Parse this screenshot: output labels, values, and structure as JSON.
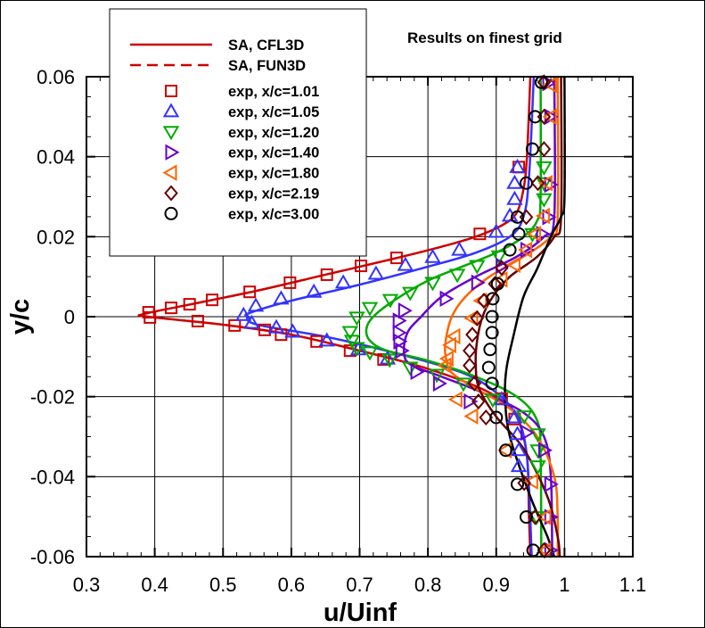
{
  "chart_data": {
    "type": "line",
    "title": "Results on finest grid",
    "xlabel": "u/Uinf",
    "ylabel": "y/c",
    "xlim": [
      0.3,
      1.1
    ],
    "ylim": [
      -0.06,
      0.06
    ],
    "xticks": [
      "0.3",
      "0.4",
      "0.5",
      "0.6",
      "0.7",
      "0.8",
      "0.9",
      "1",
      "1.1"
    ],
    "yticks": [
      "0.06",
      "0.04",
      "0.02",
      "0",
      "-0.02",
      "-0.04",
      "-0.06"
    ],
    "grid": true,
    "legend_placement": "top-left",
    "legend_lines": [
      {
        "name": "SA, CFL3D",
        "style": "solid",
        "color": "#cc0000"
      },
      {
        "name": "SA, FUN3D",
        "style": "dashed",
        "color": "#cc0000"
      }
    ],
    "stations": [
      {
        "name": "exp, x/c=1.01",
        "marker": "square",
        "color": "#cc0000",
        "line": [
          [
            0.95,
            0.06
          ],
          [
            0.945,
            0.04
          ],
          [
            0.94,
            0.032
          ],
          [
            0.93,
            0.026
          ],
          [
            0.91,
            0.023
          ],
          [
            0.87,
            0.02
          ],
          [
            0.82,
            0.0175
          ],
          [
            0.75,
            0.0145
          ],
          [
            0.65,
            0.0105
          ],
          [
            0.55,
            0.0065
          ],
          [
            0.45,
            0.003
          ],
          [
            0.385,
            0.0007
          ],
          [
            0.39,
            0
          ],
          [
            0.5,
            -0.002
          ],
          [
            0.6,
            -0.0045
          ],
          [
            0.7,
            -0.0085
          ],
          [
            0.78,
            -0.012
          ],
          [
            0.85,
            -0.016
          ],
          [
            0.9,
            -0.02
          ],
          [
            0.93,
            -0.025
          ],
          [
            0.945,
            -0.035
          ],
          [
            0.948,
            -0.05
          ],
          [
            0.95,
            -0.06
          ]
        ],
        "exp": [
          [
            0.933,
            0.0374
          ],
          [
            0.876,
            0.0207
          ],
          [
            0.754,
            0.0147
          ],
          [
            0.702,
            0.0127
          ],
          [
            0.652,
            0.0105
          ],
          [
            0.598,
            0.0085
          ],
          [
            0.539,
            0.0062
          ],
          [
            0.484,
            0.0042
          ],
          [
            0.451,
            0.0031
          ],
          [
            0.424,
            0.0022
          ],
          [
            0.391,
            0.0011
          ],
          [
            0.393,
            -0.0002
          ],
          [
            0.463,
            -0.0011
          ],
          [
            0.517,
            -0.0022
          ],
          [
            0.561,
            -0.0033
          ],
          [
            0.585,
            -0.0045
          ],
          [
            0.637,
            -0.0062
          ],
          [
            0.686,
            -0.0085
          ],
          [
            0.735,
            -0.0107
          ],
          [
            0.908,
            -0.0205
          ],
          [
            0.927,
            -0.0256
          ]
        ]
      },
      {
        "name": "exp, x/c=1.05",
        "marker": "triangle-up",
        "color": "#3333ff",
        "line": [
          [
            0.955,
            0.06
          ],
          [
            0.948,
            0.035
          ],
          [
            0.94,
            0.025
          ],
          [
            0.92,
            0.02
          ],
          [
            0.87,
            0.016
          ],
          [
            0.8,
            0.0125
          ],
          [
            0.7,
            0.008
          ],
          [
            0.6,
            0.004
          ],
          [
            0.54,
            0.001
          ],
          [
            0.535,
            0
          ],
          [
            0.55,
            -0.002
          ],
          [
            0.65,
            -0.005
          ],
          [
            0.75,
            -0.009
          ],
          [
            0.85,
            -0.014
          ],
          [
            0.9,
            -0.019
          ],
          [
            0.93,
            -0.025
          ],
          [
            0.945,
            -0.035
          ],
          [
            0.952,
            -0.06
          ]
        ],
        "exp": [
          [
            0.931,
            0.0374
          ],
          [
            0.927,
            0.0334
          ],
          [
            0.927,
            0.0294
          ],
          [
            0.92,
            0.0252
          ],
          [
            0.9,
            0.0212
          ],
          [
            0.846,
            0.0167
          ],
          [
            0.807,
            0.0149
          ],
          [
            0.767,
            0.0129
          ],
          [
            0.724,
            0.0107
          ],
          [
            0.676,
            0.0085
          ],
          [
            0.633,
            0.0062
          ],
          [
            0.585,
            0.0045
          ],
          [
            0.548,
            0.0027
          ],
          [
            0.53,
            0.0004
          ],
          [
            0.542,
            -0.0016
          ],
          [
            0.578,
            -0.0027
          ],
          [
            0.602,
            -0.0038
          ],
          [
            0.652,
            -0.006
          ],
          [
            0.698,
            -0.0082
          ],
          [
            0.741,
            -0.0105
          ],
          [
            0.908,
            -0.0207
          ],
          [
            0.927,
            -0.0252
          ],
          [
            0.931,
            -0.0294
          ],
          [
            0.933,
            -0.0334
          ],
          [
            0.933,
            -0.0374
          ]
        ]
      },
      {
        "name": "exp, x/c=1.20",
        "marker": "triangle-down",
        "color": "#00aa00",
        "line": [
          [
            0.965,
            0.06
          ],
          [
            0.965,
            0.03
          ],
          [
            0.96,
            0.024
          ],
          [
            0.94,
            0.02
          ],
          [
            0.9,
            0.016
          ],
          [
            0.85,
            0.0125
          ],
          [
            0.8,
            0.009
          ],
          [
            0.75,
            0.004
          ],
          [
            0.72,
            0
          ],
          [
            0.71,
            -0.003
          ],
          [
            0.715,
            -0.006
          ],
          [
            0.74,
            -0.0085
          ],
          [
            0.8,
            -0.011
          ],
          [
            0.87,
            -0.015
          ],
          [
            0.93,
            -0.02
          ],
          [
            0.96,
            -0.026
          ],
          [
            0.965,
            -0.035
          ],
          [
            0.966,
            -0.06
          ]
        ],
        "exp": [
          [
            0.97,
            0.0374
          ],
          [
            0.97,
            0.0334
          ],
          [
            0.97,
            0.0294
          ],
          [
            0.953,
            0.0207
          ],
          [
            0.904,
            0.0151
          ],
          [
            0.872,
            0.0127
          ],
          [
            0.843,
            0.0105
          ],
          [
            0.807,
            0.0085
          ],
          [
            0.774,
            0.006
          ],
          [
            0.745,
            0.0042
          ],
          [
            0.715,
            0.0022
          ],
          [
            0.696,
            -0.0002
          ],
          [
            0.686,
            -0.0038
          ],
          [
            0.689,
            -0.006
          ],
          [
            0.696,
            -0.0078
          ],
          [
            0.715,
            -0.0089
          ],
          [
            0.744,
            -0.0107
          ],
          [
            0.774,
            -0.0127
          ],
          [
            0.813,
            -0.0145
          ],
          [
            0.852,
            -0.0167
          ],
          [
            0.895,
            -0.0207
          ],
          [
            0.941,
            -0.0249
          ],
          [
            0.961,
            -0.0294
          ],
          [
            0.961,
            -0.0334
          ],
          [
            0.961,
            -0.0374
          ],
          [
            0.959,
            -0.0501
          ]
        ]
      },
      {
        "name": "exp, x/c=1.40",
        "marker": "triangle-right",
        "color": "#6600cc",
        "line": [
          [
            0.985,
            0.06
          ],
          [
            0.985,
            0.025
          ],
          [
            0.97,
            0.02
          ],
          [
            0.93,
            0.015
          ],
          [
            0.87,
            0.01
          ],
          [
            0.82,
            0.005
          ],
          [
            0.79,
            0
          ],
          [
            0.77,
            -0.004
          ],
          [
            0.765,
            -0.009
          ],
          [
            0.775,
            -0.012
          ],
          [
            0.82,
            -0.015
          ],
          [
            0.88,
            -0.019
          ],
          [
            0.94,
            -0.024
          ],
          [
            0.97,
            -0.03
          ],
          [
            0.98,
            -0.04
          ],
          [
            0.982,
            -0.06
          ]
        ],
        "exp": [
          [
            0.976,
            0.0584
          ],
          [
            0.979,
            0.05
          ],
          [
            0.979,
            0.033
          ],
          [
            0.976,
            0.0249
          ],
          [
            0.967,
            0.0207
          ],
          [
            0.944,
            0.0167
          ],
          [
            0.908,
            0.0127
          ],
          [
            0.872,
            0.0085
          ],
          [
            0.826,
            0.0045
          ],
          [
            0.765,
            0.0015
          ],
          [
            0.757,
            -0.001
          ],
          [
            0.757,
            -0.004
          ],
          [
            0.758,
            -0.0062
          ],
          [
            0.761,
            -0.0085
          ],
          [
            0.783,
            -0.0138
          ],
          [
            0.816,
            -0.0167
          ],
          [
            0.861,
            -0.0212
          ],
          [
            0.944,
            -0.029
          ],
          [
            0.97,
            -0.0334
          ],
          [
            0.979,
            -0.0419
          ],
          [
            0.979,
            -0.0501
          ],
          [
            0.979,
            -0.0584
          ]
        ]
      },
      {
        "name": "exp, x/c=1.80",
        "marker": "triangle-left",
        "color": "#ff6600",
        "line": [
          [
            0.99,
            0.06
          ],
          [
            0.99,
            0.025
          ],
          [
            0.98,
            0.02
          ],
          [
            0.94,
            0.015
          ],
          [
            0.89,
            0.01
          ],
          [
            0.855,
            0.005
          ],
          [
            0.835,
            0
          ],
          [
            0.826,
            -0.006
          ],
          [
            0.826,
            -0.01
          ],
          [
            0.835,
            -0.014
          ],
          [
            0.87,
            -0.018
          ],
          [
            0.92,
            -0.023
          ],
          [
            0.96,
            -0.03
          ],
          [
            0.985,
            -0.04
          ],
          [
            0.99,
            -0.05
          ],
          [
            0.99,
            -0.06
          ]
        ],
        "exp": [
          [
            0.98,
            0.058
          ],
          [
            0.98,
            0.05
          ],
          [
            0.974,
            0.0334
          ],
          [
            0.97,
            0.0252
          ],
          [
            0.957,
            0.0207
          ],
          [
            0.944,
            0.0167
          ],
          [
            0.927,
            0.013
          ],
          [
            0.908,
            0.0093
          ],
          [
            0.878,
            0.004
          ],
          [
            0.865,
            -0.0004
          ],
          [
            0.839,
            -0.0049
          ],
          [
            0.833,
            -0.0071
          ],
          [
            0.829,
            -0.0105
          ],
          [
            0.826,
            -0.0122
          ],
          [
            0.842,
            -0.0207
          ],
          [
            0.865,
            -0.0249
          ],
          [
            0.914,
            -0.0334
          ],
          [
            0.953,
            -0.0412
          ],
          [
            0.972,
            -0.0501
          ],
          [
            0.972,
            -0.0584
          ]
        ]
      },
      {
        "name": "exp, x/c=2.19",
        "marker": "diamond",
        "color": "#660000",
        "line": [
          [
            0.995,
            0.06
          ],
          [
            0.995,
            0.025
          ],
          [
            0.985,
            0.02
          ],
          [
            0.96,
            0.015
          ],
          [
            0.92,
            0.01
          ],
          [
            0.895,
            0.005
          ],
          [
            0.88,
            0
          ],
          [
            0.872,
            -0.006
          ],
          [
            0.87,
            -0.012
          ],
          [
            0.875,
            -0.018
          ],
          [
            0.9,
            -0.025
          ],
          [
            0.94,
            -0.033
          ],
          [
            0.975,
            -0.045
          ],
          [
            0.99,
            -0.055
          ],
          [
            0.993,
            -0.06
          ]
        ],
        "exp": [
          [
            0.97,
            0.0586
          ],
          [
            0.97,
            0.05
          ],
          [
            0.97,
            0.0419
          ],
          [
            0.961,
            0.0334
          ],
          [
            0.944,
            0.0249
          ],
          [
            0.908,
            0.0122
          ],
          [
            0.898,
            0.0082
          ],
          [
            0.882,
            0.004
          ],
          [
            0.872,
            -0.0004
          ],
          [
            0.865,
            -0.0045
          ],
          [
            0.861,
            -0.0085
          ],
          [
            0.861,
            -0.0122
          ],
          [
            0.868,
            -0.0167
          ],
          [
            0.874,
            -0.0212
          ],
          [
            0.885,
            -0.0252
          ],
          [
            0.941,
            -0.0416
          ],
          [
            0.957,
            -0.0501
          ],
          [
            0.97,
            -0.0584
          ]
        ]
      },
      {
        "name": "exp, x/c=3.00",
        "marker": "circle",
        "color": "#000000",
        "line": [
          [
            1.0,
            0.06
          ],
          [
            1.0,
            0.03
          ],
          [
            0.995,
            0.025
          ],
          [
            0.98,
            0.02
          ],
          [
            0.96,
            0.012
          ],
          [
            0.94,
            0.005
          ],
          [
            0.925,
            -0.005
          ],
          [
            0.915,
            -0.013
          ],
          [
            0.913,
            -0.02
          ],
          [
            0.92,
            -0.03
          ],
          [
            0.95,
            -0.045
          ],
          [
            0.975,
            -0.055
          ],
          [
            0.985,
            -0.06
          ]
        ],
        "exp": [
          [
            0.966,
            0.0586
          ],
          [
            0.957,
            0.05
          ],
          [
            0.953,
            0.0419
          ],
          [
            0.944,
            0.0334
          ],
          [
            0.931,
            0.0249
          ],
          [
            0.933,
            0.0207
          ],
          [
            0.92,
            0.0167
          ],
          [
            0.902,
            0.0082
          ],
          [
            0.895,
            0.0045
          ],
          [
            0.894,
            0
          ],
          [
            0.894,
            -0.004
          ],
          [
            0.891,
            -0.0082
          ],
          [
            0.889,
            -0.0127
          ],
          [
            0.894,
            -0.0167
          ],
          [
            0.9,
            -0.0252
          ],
          [
            0.914,
            -0.0334
          ],
          [
            0.931,
            -0.0419
          ],
          [
            0.944,
            -0.0501
          ],
          [
            0.954,
            -0.0584
          ]
        ]
      }
    ]
  }
}
